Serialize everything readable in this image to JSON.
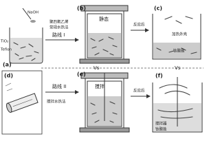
{
  "panels": {
    "a": {
      "label": "(a)",
      "reagent": "NaOH",
      "powder": "TiO₂",
      "liner": "Teflon"
    },
    "b": {
      "label": "(b)",
      "state": "静态"
    },
    "c": {
      "label": "(c)",
      "after": "反应后",
      "shell": "加热外壳",
      "product": "钛酸盐"
    },
    "d": {
      "label": "(d)"
    },
    "e": {
      "label": "(e)",
      "state": "搅拌"
    },
    "f": {
      "label": "(f)",
      "after": "反应后",
      "stirrer": "搅拌器",
      "product": "钛酸盐"
    }
  },
  "route1": {
    "method": [
      "聚四氟乙烯",
      "常规水热法"
    ],
    "label": "路线 I"
  },
  "route2": {
    "label": "路线 II",
    "method": "搅拌水热法"
  },
  "versus": [
    "Vs",
    "Vs"
  ]
}
